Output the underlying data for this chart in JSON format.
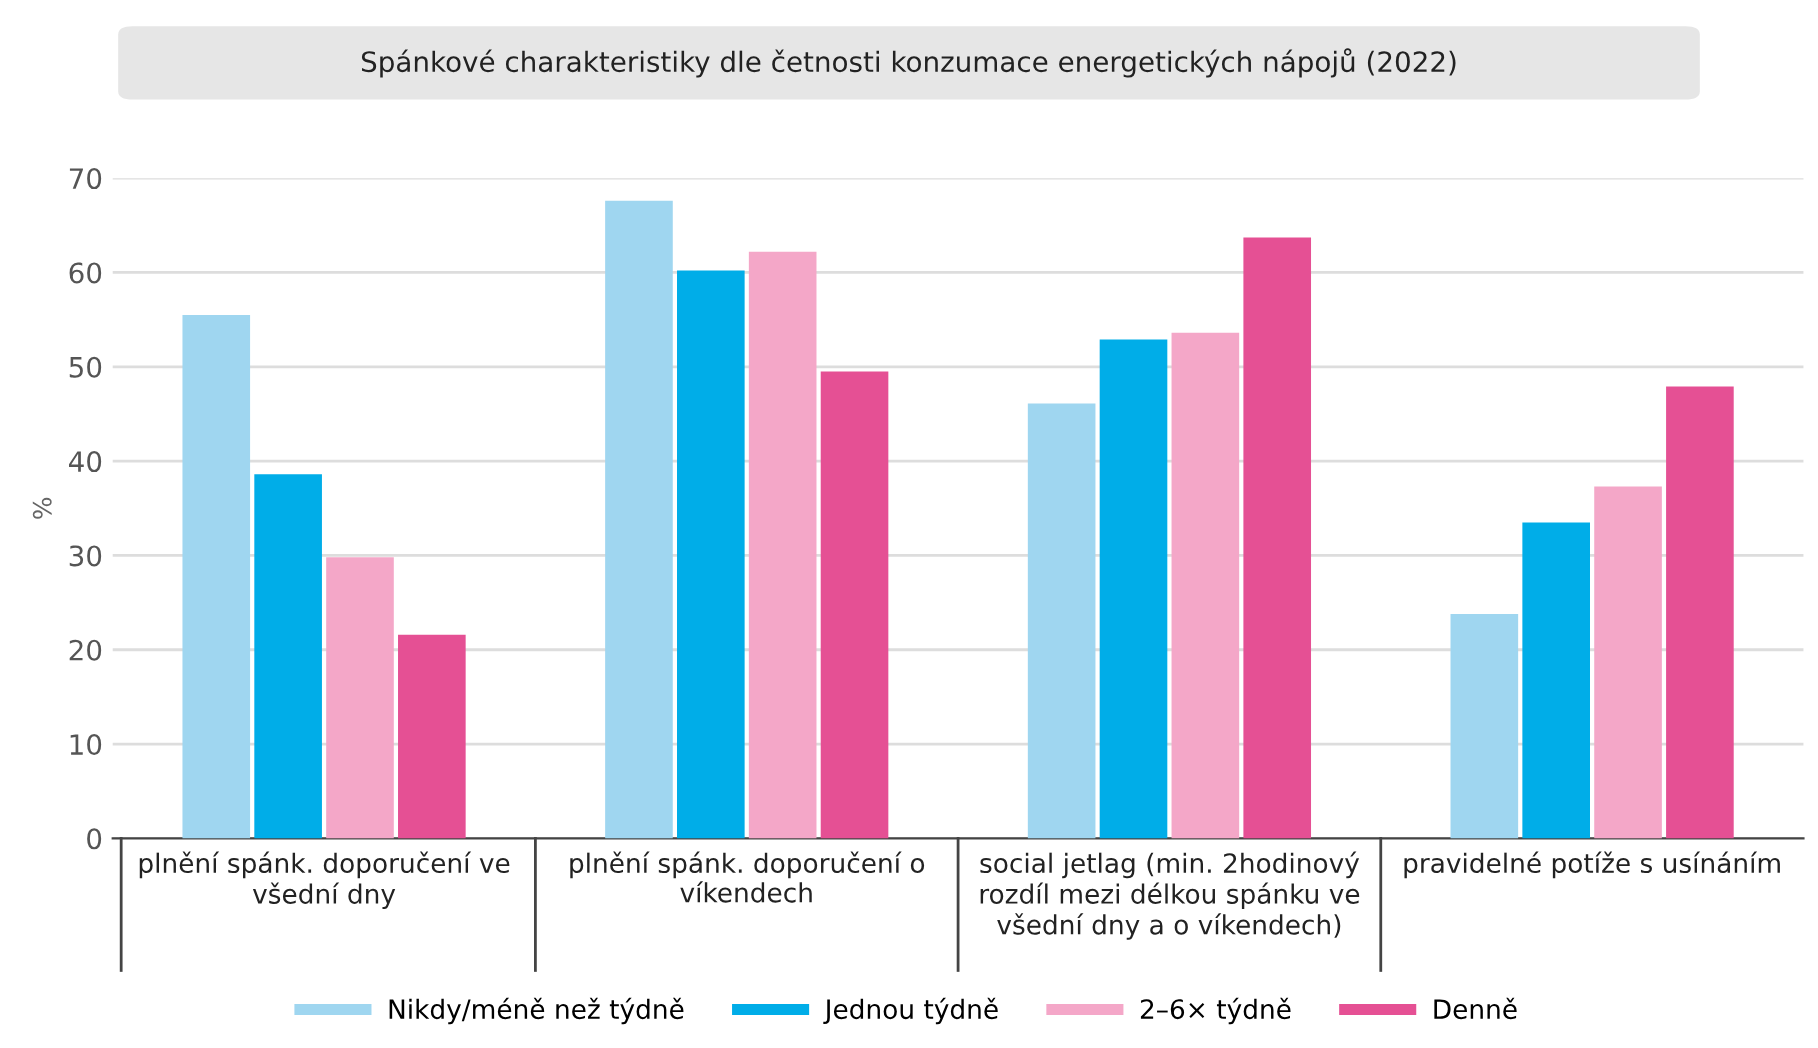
{
  "chart_data": {
    "type": "bar",
    "title": "Spánkové charakteristiky dle četnosti konzumace energetických nápojů (2022)",
    "ylabel": "%",
    "categories": [
      "plnění spánk. doporučení ve všední dny",
      "plnění spánk. doporučení o víkendech",
      "social jetlag (min. 2hodinový rozdíl mezi délkou spánku ve všední dny a o víkendech)",
      "pravidelné potíže s usínáním"
    ],
    "series": [
      {
        "name": "Nikdy/méně než týdně",
        "color": "#9fd6f0",
        "values": [
          55.5,
          67.6,
          46.1,
          23.8
        ]
      },
      {
        "name": "Jednou týdně",
        "color": "#00ade8",
        "values": [
          38.6,
          60.2,
          52.9,
          33.5
        ]
      },
      {
        "name": "2–6× týdně",
        "color": "#f4a7c8",
        "values": [
          29.8,
          62.2,
          53.6,
          37.3
        ]
      },
      {
        "name": "Denně",
        "color": "#e55094",
        "values": [
          21.6,
          49.5,
          63.7,
          47.9
        ]
      }
    ],
    "ylim": [
      0,
      70
    ],
    "yticks": [
      0,
      10,
      20,
      30,
      40,
      50,
      60,
      70
    ],
    "grid": "y",
    "legend": "bottom"
  }
}
